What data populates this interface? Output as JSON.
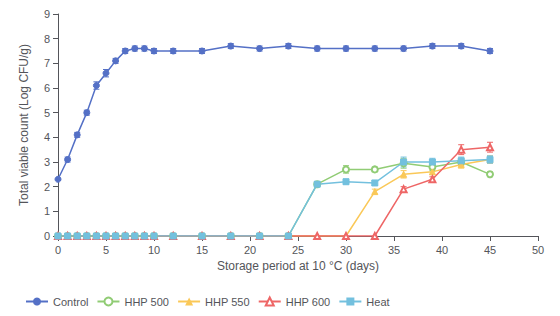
{
  "chart_data": {
    "type": "line",
    "title": "",
    "xlabel": "Storage period at 10 °C (days)",
    "ylabel": "Total viable count (Log CFU/g)",
    "xlim": [
      0,
      50
    ],
    "ylim": [
      0,
      9
    ],
    "xticks": [
      0,
      5,
      10,
      15,
      20,
      25,
      30,
      35,
      40,
      45,
      50
    ],
    "yticks": [
      0,
      1,
      2,
      3,
      4,
      5,
      6,
      7,
      8,
      9
    ],
    "grid": false,
    "legend": "lower left",
    "x": [
      0,
      1,
      2,
      3,
      4,
      5,
      6,
      7,
      8,
      9,
      10,
      12,
      15,
      18,
      21,
      24,
      27,
      30,
      33,
      36,
      39,
      42,
      45
    ],
    "series": [
      {
        "name": "Control",
        "marker": "circle",
        "values": [
          2.3,
          3.1,
          4.1,
          5.0,
          6.1,
          6.6,
          7.1,
          7.5,
          7.6,
          7.6,
          7.5,
          7.5,
          7.5,
          7.7,
          7.6,
          7.7,
          7.6,
          7.6,
          7.6,
          7.6,
          7.7,
          7.7,
          7.5
        ],
        "errors": [
          0.05,
          0.1,
          0.1,
          0.1,
          0.15,
          0.15,
          0.1,
          0.1,
          0.1,
          0.1,
          0.1,
          0.1,
          0.1,
          0.1,
          0.1,
          0.1,
          0.1,
          0.1,
          0.1,
          0.1,
          0.1,
          0.1,
          0.1
        ]
      },
      {
        "name": "HHP 500",
        "marker": "emptyCircle",
        "values": [
          0,
          0,
          0,
          0,
          0,
          0,
          0,
          0,
          0,
          0,
          0,
          0,
          0,
          0,
          0,
          0,
          2.1,
          2.7,
          2.7,
          2.95,
          2.8,
          3.0,
          2.5
        ],
        "errors": [
          0,
          0,
          0,
          0,
          0,
          0,
          0,
          0,
          0,
          0,
          0,
          0,
          0,
          0,
          0,
          0,
          0.1,
          0.15,
          0.1,
          0.2,
          0.15,
          0.15,
          0.1
        ]
      },
      {
        "name": "HHP 550",
        "marker": "triangle",
        "values": [
          0,
          0,
          0,
          0,
          0,
          0,
          0,
          0,
          0,
          0,
          0,
          0,
          0,
          0,
          0,
          0,
          0,
          0,
          1.8,
          2.5,
          2.6,
          2.9,
          3.1
        ],
        "errors": [
          0,
          0,
          0,
          0,
          0,
          0,
          0,
          0,
          0,
          0,
          0,
          0,
          0,
          0,
          0,
          0,
          0,
          0,
          0.1,
          0.15,
          0.1,
          0.15,
          0.15
        ]
      },
      {
        "name": "HHP 600",
        "marker": "emptyTriangle",
        "values": [
          0,
          0,
          0,
          0,
          0,
          0,
          0,
          0,
          0,
          0,
          0,
          0,
          0,
          0,
          0,
          0,
          0,
          0,
          0,
          1.9,
          2.3,
          3.5,
          3.6
        ],
        "errors": [
          0,
          0,
          0,
          0,
          0,
          0,
          0,
          0,
          0,
          0,
          0,
          0,
          0,
          0,
          0,
          0,
          0,
          0,
          0,
          0.1,
          0.1,
          0.2,
          0.2
        ]
      },
      {
        "name": "Heat",
        "marker": "rect",
        "values": [
          0,
          0,
          0,
          0,
          0,
          0,
          0,
          0,
          0,
          0,
          0,
          0,
          0,
          0,
          0,
          0,
          2.1,
          2.2,
          2.15,
          3.0,
          3.0,
          3.05,
          3.1
        ],
        "errors": [
          0,
          0,
          0,
          0,
          0,
          0,
          0,
          0,
          0,
          0,
          0,
          0,
          0,
          0,
          0,
          0,
          0.1,
          0.1,
          0.1,
          0.2,
          0.15,
          0.15,
          0.15
        ]
      }
    ]
  }
}
